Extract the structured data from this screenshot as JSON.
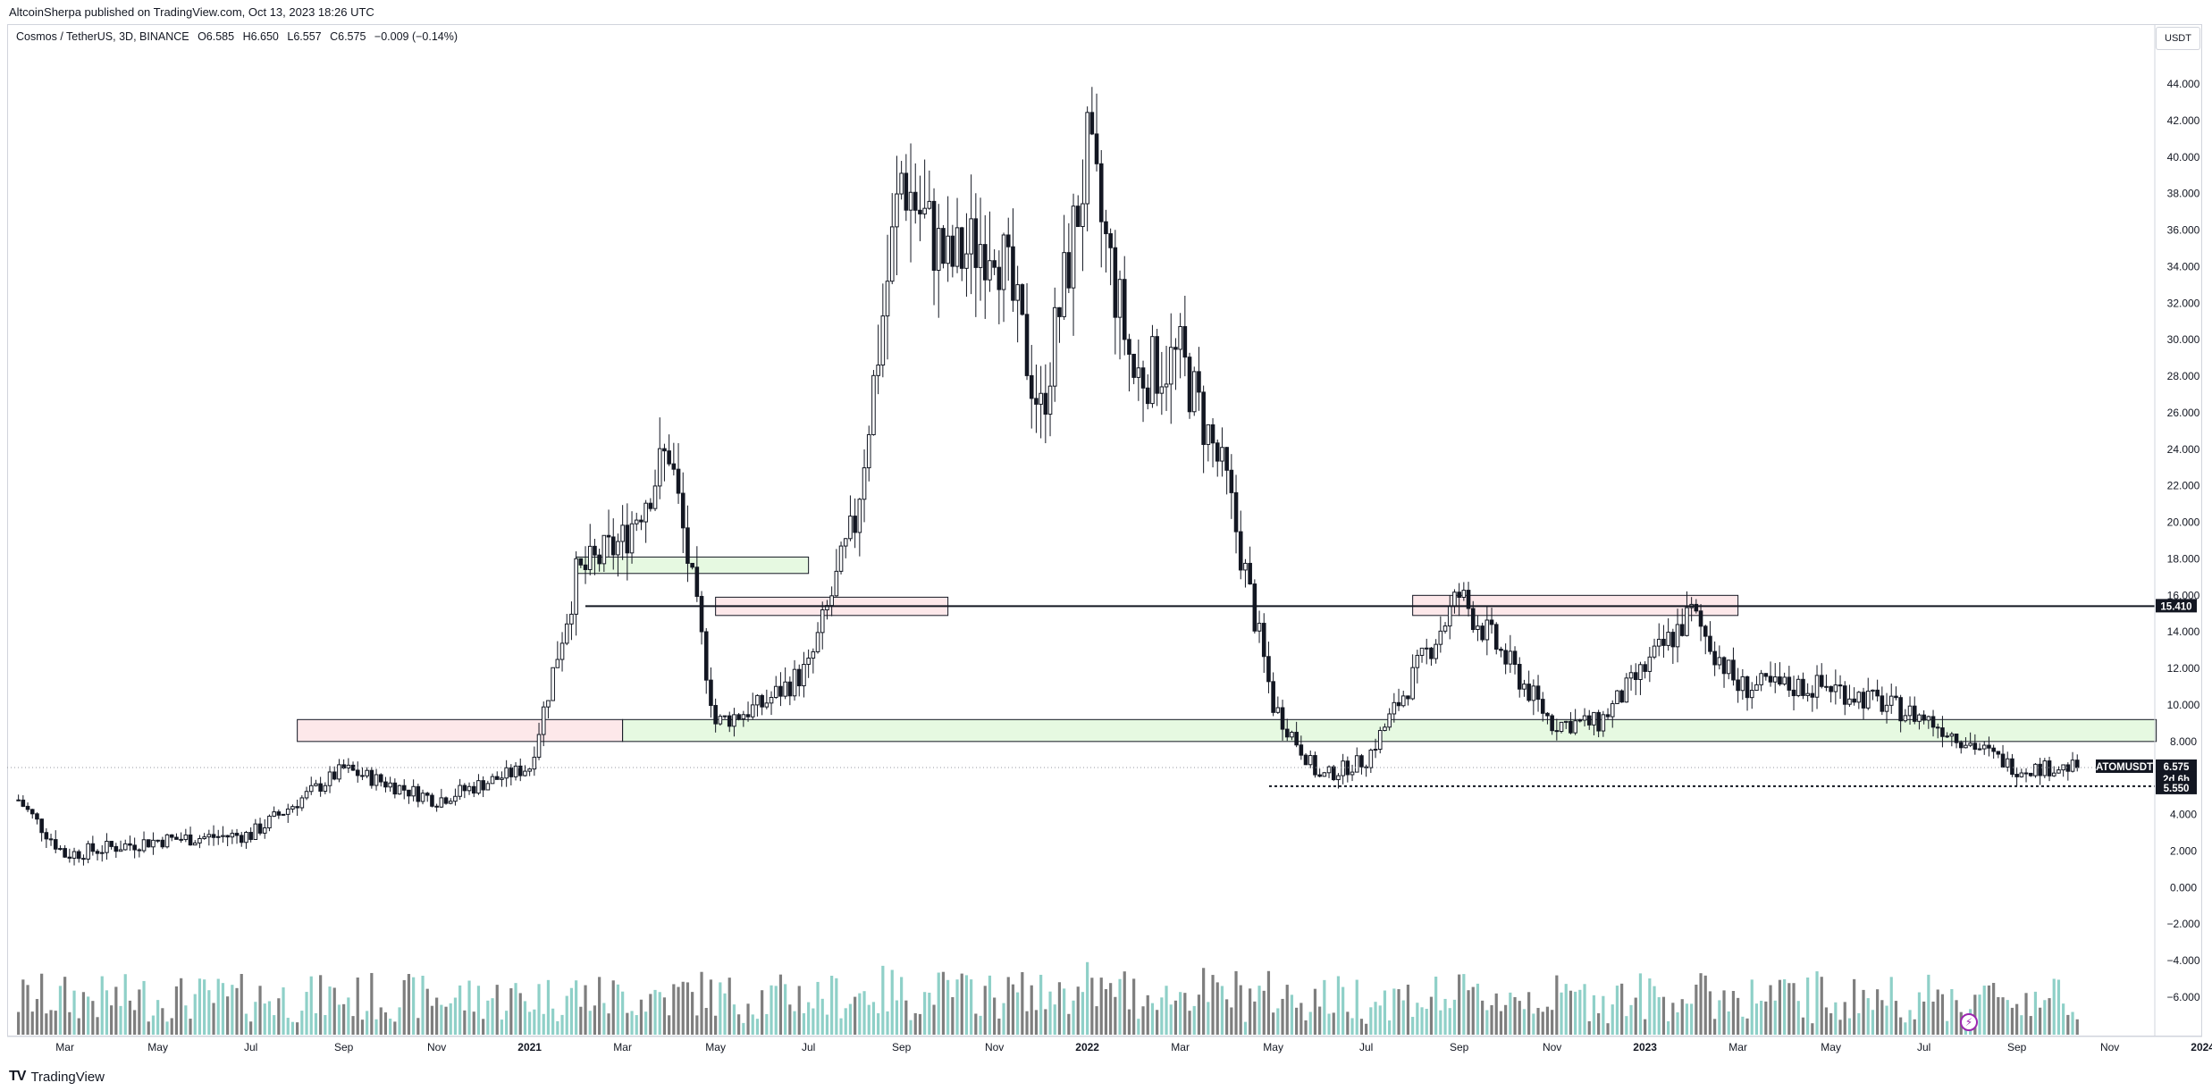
{
  "header": {
    "publisher": "AltcoinSherpa published on TradingView.com, Oct 13, 2023 18:26 UTC"
  },
  "legend": {
    "pair": "Cosmos / TetherUS, 3D, BINANCE",
    "open": "O6.585",
    "high": "H6.650",
    "low": "L6.557",
    "close": "C6.575",
    "change": "−0.009 (−0.14%)"
  },
  "axis": {
    "currency": "USDT",
    "price_ticks": [
      "44.000",
      "42.000",
      "40.000",
      "38.000",
      "36.000",
      "34.000",
      "32.000",
      "30.000",
      "28.000",
      "26.000",
      "24.000",
      "22.000",
      "20.000",
      "18.000",
      "16.000",
      "14.000",
      "12.000",
      "10.000",
      "8.000",
      "6.000",
      "4.000",
      "2.000",
      "0.000",
      "−2.000",
      "−4.000",
      "−6.000"
    ],
    "time_ticks": [
      "Mar",
      "May",
      "Jul",
      "Sep",
      "Nov",
      "2021",
      "Mar",
      "May",
      "Jul",
      "Sep",
      "Nov",
      "2022",
      "Mar",
      "May",
      "Jul",
      "Sep",
      "Nov",
      "2023",
      "Mar",
      "May",
      "Jul",
      "Sep",
      "Nov",
      "2024"
    ]
  },
  "price_labels": {
    "symbol": "ATOMUSDT",
    "last": "6.575",
    "countdown": "2d 6h",
    "support": "5.550",
    "resistance": "15.410"
  },
  "footer": {
    "brand": "TradingView",
    "logo": "TV"
  },
  "colors": {
    "candle": "#131722",
    "vol_up": "#8fd0c8",
    "vol_down": "#7e7e7e",
    "demand_zone_fill": "#e6f9e1",
    "supply_zone_fill": "#fde8ea"
  },
  "chart_data": {
    "type": "candlestick",
    "timeframe": "3D",
    "series": [
      {
        "name": "ATOMUSDT",
        "x": [
          "2020-02",
          "2020-03",
          "2020-05",
          "2020-07",
          "2020-09",
          "2020-11",
          "2021-01",
          "2021-02",
          "2021-03",
          "2021-04",
          "2021-05",
          "2021-06",
          "2021-07",
          "2021-08",
          "2021-09",
          "2021-10",
          "2021-11",
          "2021-12",
          "2022-01",
          "2022-02",
          "2022-03",
          "2022-04",
          "2022-05",
          "2022-06",
          "2022-07",
          "2022-09",
          "2022-11",
          "2022-12",
          "2023-02",
          "2023-03",
          "2023-05",
          "2023-07",
          "2023-09",
          "2023-10"
        ],
        "close": [
          4.8,
          1.8,
          2.6,
          2.9,
          6.5,
          4.8,
          6.6,
          17,
          19,
          24,
          9,
          10,
          12,
          20,
          39,
          34,
          36,
          26,
          40,
          28,
          29,
          22,
          10,
          6,
          7,
          16,
          9,
          9,
          15,
          11,
          11,
          9.3,
          6.5,
          6.575
        ]
      }
    ],
    "levels": [
      15.41,
      5.55
    ],
    "zones": [
      {
        "type": "supply",
        "from": "2020-08",
        "to": "2021-03",
        "low": 8.0,
        "high": 9.2
      },
      {
        "type": "demand",
        "from": "2021-03",
        "to": "2023-12",
        "low": 8.0,
        "high": 9.2
      },
      {
        "type": "demand",
        "from": "2021-02",
        "to": "2021-07",
        "low": 17.2,
        "high": 18.1
      },
      {
        "type": "supply",
        "from": "2021-05",
        "to": "2021-10",
        "low": 14.9,
        "high": 15.9
      },
      {
        "type": "supply",
        "from": "2022-08",
        "to": "2023-03",
        "low": 14.9,
        "high": 16.0
      }
    ],
    "volume_panel": "shown",
    "ylim": [
      -7.8,
      45.5
    ],
    "grid": false,
    "legend": "top-left"
  }
}
